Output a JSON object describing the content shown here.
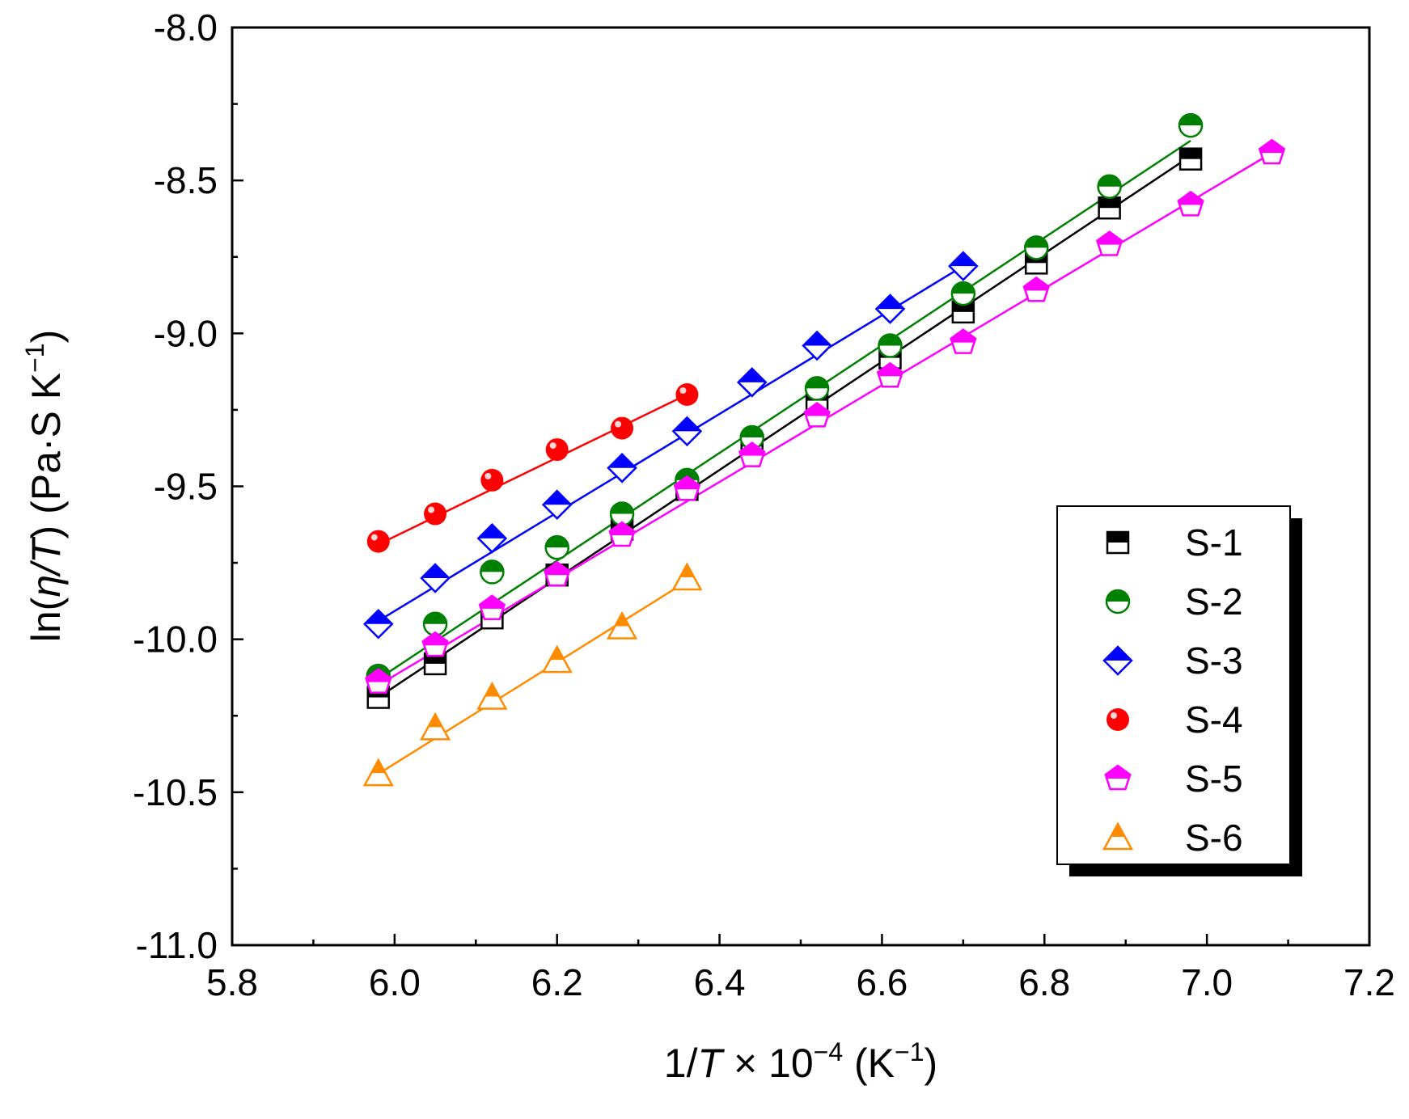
{
  "chart_data": {
    "type": "scatter",
    "fit_lines": true,
    "xlim": [
      5.8,
      7.2
    ],
    "ylim": [
      -11.0,
      -8.0
    ],
    "x_ticks": [
      "5.8",
      "6.0",
      "6.2",
      "6.4",
      "6.6",
      "6.8",
      "7.0",
      "7.2"
    ],
    "y_ticks": [
      "-8.0",
      "-8.5",
      "-9.0",
      "-9.5",
      "-10.0",
      "-10.5",
      "-11.0"
    ],
    "x_tick_values": [
      5.8,
      6.0,
      6.2,
      6.4,
      6.6,
      6.8,
      7.0,
      7.2
    ],
    "y_tick_values": [
      -8.0,
      -8.5,
      -9.0,
      -9.5,
      -10.0,
      -10.5,
      -11.0
    ],
    "xlabel": {
      "prefix": "1/",
      "var": "T",
      "times": " × 10",
      "exp": "−4",
      "unit_open": " (K",
      "unit_exp": "−1",
      "unit_close": ")"
    },
    "ylabel": {
      "prefix": "ln(",
      "var": "η/T",
      "mid": ") (Pa·S K",
      "exp": "−1",
      "close": ")"
    },
    "legend_position": "bottom-right",
    "series": [
      {
        "name": "S-1",
        "marker": "square",
        "color": "#000000",
        "x": [
          5.98,
          6.05,
          6.12,
          6.2,
          6.28,
          6.36,
          6.44,
          6.52,
          6.61,
          6.7,
          6.79,
          6.88,
          6.98
        ],
        "y": [
          -10.19,
          -10.08,
          -9.93,
          -9.79,
          -9.64,
          -9.51,
          -9.37,
          -9.22,
          -9.08,
          -8.93,
          -8.77,
          -8.59,
          -8.43
        ],
        "fit": {
          "x": [
            5.98,
            6.98
          ],
          "y": [
            -10.19,
            -8.42
          ]
        }
      },
      {
        "name": "S-2",
        "marker": "circle-half",
        "color": "#008000",
        "x": [
          5.98,
          6.05,
          6.12,
          6.2,
          6.28,
          6.36,
          6.44,
          6.52,
          6.61,
          6.7,
          6.79,
          6.88,
          6.98
        ],
        "y": [
          -10.12,
          -9.95,
          -9.78,
          -9.7,
          -9.59,
          -9.48,
          -9.34,
          -9.18,
          -9.04,
          -8.87,
          -8.72,
          -8.52,
          -8.32
        ],
        "fit": {
          "x": [
            5.98,
            6.98
          ],
          "y": [
            -10.13,
            -8.37
          ]
        }
      },
      {
        "name": "S-3",
        "marker": "diamond",
        "color": "#0000ff",
        "x": [
          5.98,
          6.05,
          6.12,
          6.2,
          6.28,
          6.36,
          6.44,
          6.52,
          6.61,
          6.7
        ],
        "y": [
          -9.95,
          -9.8,
          -9.67,
          -9.56,
          -9.44,
          -9.32,
          -9.16,
          -9.04,
          -8.92,
          -8.78
        ],
        "fit": {
          "x": [
            5.98,
            6.7
          ],
          "y": [
            -9.94,
            -8.78
          ]
        }
      },
      {
        "name": "S-4",
        "marker": "ball",
        "color": "#ff0000",
        "x": [
          5.98,
          6.05,
          6.12,
          6.2,
          6.28,
          6.36
        ],
        "y": [
          -9.68,
          -9.59,
          -9.48,
          -9.38,
          -9.31,
          -9.2
        ],
        "fit": {
          "x": [
            5.98,
            6.36
          ],
          "y": [
            -9.69,
            -9.2
          ]
        }
      },
      {
        "name": "S-5",
        "marker": "pentagon",
        "color": "#ff00ff",
        "x": [
          5.98,
          6.05,
          6.12,
          6.2,
          6.28,
          6.36,
          6.44,
          6.52,
          6.61,
          6.7,
          6.79,
          6.88,
          6.98,
          7.08
        ],
        "y": [
          -10.14,
          -10.02,
          -9.9,
          -9.79,
          -9.66,
          -9.51,
          -9.4,
          -9.27,
          -9.14,
          -9.03,
          -8.86,
          -8.71,
          -8.58,
          -8.41
        ],
        "fit": {
          "x": [
            5.98,
            7.08
          ],
          "y": [
            -10.15,
            -8.41
          ]
        }
      },
      {
        "name": "S-6",
        "marker": "triangle",
        "color": "#ff8c00",
        "x": [
          5.98,
          6.05,
          6.12,
          6.2,
          6.28,
          6.36
        ],
        "y": [
          -10.44,
          -10.29,
          -10.19,
          -10.07,
          -9.96,
          -9.8
        ],
        "fit": {
          "x": [
            5.98,
            6.36
          ],
          "y": [
            -10.44,
            -9.81
          ]
        }
      }
    ]
  }
}
